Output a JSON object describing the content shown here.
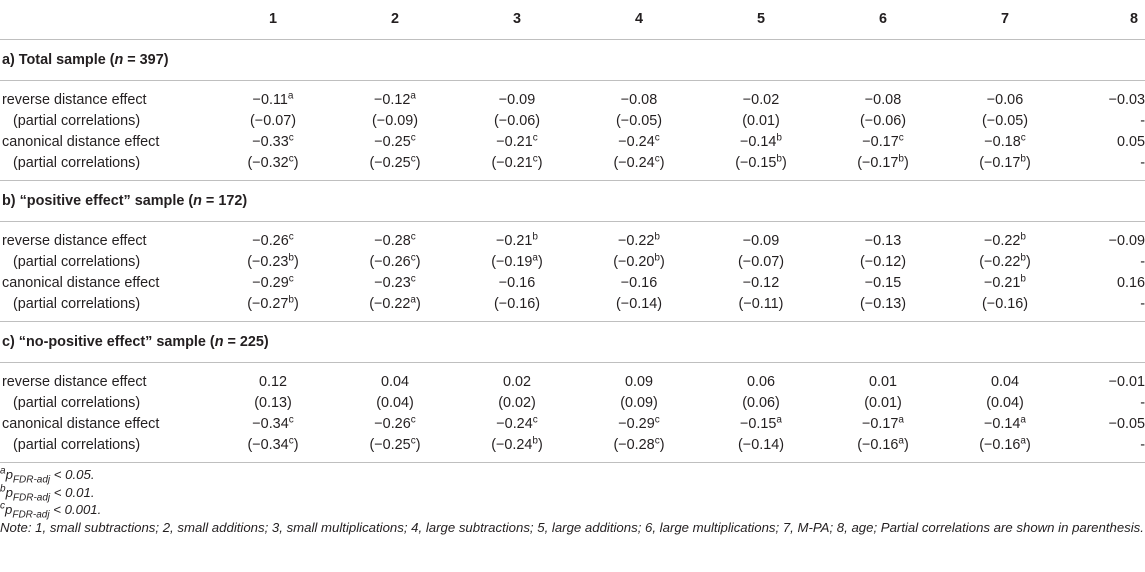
{
  "columns": [
    "",
    "1",
    "2",
    "3",
    "4",
    "5",
    "6",
    "7",
    "8"
  ],
  "sections": [
    {
      "title_prefix": "a) Total sample (",
      "title_n": "n",
      "title_suffix": " = 397)",
      "rows": [
        {
          "label": "reverse distance effect",
          "indent": false,
          "cells": [
            [
              "−0.11",
              "a"
            ],
            [
              "−0.12",
              "a"
            ],
            [
              "−0.09",
              ""
            ],
            [
              "−0.08",
              ""
            ],
            [
              "−0.02",
              ""
            ],
            [
              "−0.08",
              ""
            ],
            [
              "−0.06",
              ""
            ],
            [
              "−0.03",
              ""
            ]
          ]
        },
        {
          "label": "(partial correlations)",
          "indent": true,
          "cells": [
            [
              "(−0.07)",
              ""
            ],
            [
              "(−0.09)",
              ""
            ],
            [
              "(−0.06)",
              ""
            ],
            [
              "(−0.05)",
              ""
            ],
            [
              "(0.01)",
              ""
            ],
            [
              "(−0.06)",
              ""
            ],
            [
              "(−0.05)",
              ""
            ],
            [
              "-",
              ""
            ]
          ]
        },
        {
          "label": "canonical distance effect",
          "indent": false,
          "cells": [
            [
              "−0.33",
              "c"
            ],
            [
              "−0.25",
              "c"
            ],
            [
              "−0.21",
              "c"
            ],
            [
              "−0.24",
              "c"
            ],
            [
              "−0.14",
              "b"
            ],
            [
              "−0.17",
              "c"
            ],
            [
              "−0.18",
              "c"
            ],
            [
              "0.05",
              ""
            ]
          ]
        },
        {
          "label": "(partial correlations)",
          "indent": true,
          "cells": [
            [
              "(−0.32",
              "c",
              ")"
            ],
            [
              "(−0.25",
              "c",
              ")"
            ],
            [
              "(−0.21",
              "c",
              ")"
            ],
            [
              "(−0.24",
              "c",
              ")"
            ],
            [
              "(−0.15",
              "b",
              ")"
            ],
            [
              "(−0.17",
              "b",
              ")"
            ],
            [
              "(−0.17",
              "b",
              ")"
            ],
            [
              "-",
              ""
            ]
          ]
        }
      ]
    },
    {
      "title_prefix": "b) “positive effect” sample (",
      "title_n": "n",
      "title_suffix": " = 172)",
      "rows": [
        {
          "label": "reverse distance effect",
          "indent": false,
          "cells": [
            [
              "−0.26",
              "c"
            ],
            [
              "−0.28",
              "c"
            ],
            [
              "−0.21",
              "b"
            ],
            [
              "−0.22",
              "b"
            ],
            [
              "−0.09",
              ""
            ],
            [
              "−0.13",
              ""
            ],
            [
              "−0.22",
              "b"
            ],
            [
              "−0.09",
              ""
            ]
          ]
        },
        {
          "label": "(partial correlations)",
          "indent": true,
          "cells": [
            [
              "(−0.23",
              "b",
              ")"
            ],
            [
              "(−0.26",
              "c",
              ")"
            ],
            [
              "(−0.19",
              "a",
              ")"
            ],
            [
              "(−0.20",
              "b",
              ")"
            ],
            [
              "(−0.07)",
              ""
            ],
            [
              "(−0.12)",
              ""
            ],
            [
              "(−0.22",
              "b",
              ")"
            ],
            [
              "-",
              ""
            ]
          ]
        },
        {
          "label": "canonical distance effect",
          "indent": false,
          "cells": [
            [
              "−0.29",
              "c"
            ],
            [
              "−0.23",
              "c"
            ],
            [
              "−0.16",
              ""
            ],
            [
              "−0.16",
              ""
            ],
            [
              "−0.12",
              ""
            ],
            [
              "−0.15",
              ""
            ],
            [
              "−0.21",
              "b"
            ],
            [
              "0.16",
              ""
            ]
          ]
        },
        {
          "label": "(partial correlations)",
          "indent": true,
          "cells": [
            [
              "(−0.27",
              "b",
              ")"
            ],
            [
              "(−0.22",
              "a",
              ")"
            ],
            [
              "(−0.16)",
              ""
            ],
            [
              "(−0.14)",
              ""
            ],
            [
              "(−0.11)",
              ""
            ],
            [
              "(−0.13)",
              ""
            ],
            [
              "(−0.16)",
              ""
            ],
            [
              "-",
              ""
            ]
          ]
        }
      ]
    },
    {
      "title_prefix": "c) “no-positive effect” sample (",
      "title_n": "n",
      "title_suffix": " = 225)",
      "rows": [
        {
          "label": "reverse distance effect",
          "indent": false,
          "cells": [
            [
              "0.12",
              ""
            ],
            [
              "0.04",
              ""
            ],
            [
              "0.02",
              ""
            ],
            [
              "0.09",
              ""
            ],
            [
              "0.06",
              ""
            ],
            [
              "0.01",
              ""
            ],
            [
              "0.04",
              ""
            ],
            [
              "−0.01",
              ""
            ]
          ]
        },
        {
          "label": "(partial correlations)",
          "indent": true,
          "cells": [
            [
              "(0.13)",
              ""
            ],
            [
              "(0.04)",
              ""
            ],
            [
              "(0.02)",
              ""
            ],
            [
              "(0.09)",
              ""
            ],
            [
              "(0.06)",
              ""
            ],
            [
              "(0.01)",
              ""
            ],
            [
              "(0.04)",
              ""
            ],
            [
              "-",
              ""
            ]
          ]
        },
        {
          "label": "canonical distance effect",
          "indent": false,
          "cells": [
            [
              "−0.34",
              "c"
            ],
            [
              "−0.26",
              "c"
            ],
            [
              "−0.24",
              "c"
            ],
            [
              "−0.29",
              "c"
            ],
            [
              "−0.15",
              "a"
            ],
            [
              "−0.17",
              "a"
            ],
            [
              "−0.14",
              "a"
            ],
            [
              "−0.05",
              ""
            ]
          ]
        },
        {
          "label": "(partial correlations)",
          "indent": true,
          "cells": [
            [
              "(−0.34",
              "c",
              ")"
            ],
            [
              "(−0.25",
              "c",
              ")"
            ],
            [
              "(−0.24",
              "b",
              ")"
            ],
            [
              "(−0.28",
              "c",
              ")"
            ],
            [
              "(−0.14)",
              ""
            ],
            [
              "(−0.16",
              "a",
              ")"
            ],
            [
              "(−0.16",
              "a",
              ")"
            ],
            [
              "-",
              ""
            ]
          ]
        }
      ]
    }
  ],
  "footnotes": [
    {
      "sup": "a",
      "p": "p",
      "sub": "FDR-adj",
      "text": " < 0.05."
    },
    {
      "sup": "b",
      "p": "p",
      "sub": "FDR-adj",
      "text": " < 0.01."
    },
    {
      "sup": "c",
      "p": "p",
      "sub": "FDR-adj",
      "text": " < 0.001."
    }
  ],
  "note": "Note: 1, small subtractions; 2, small additions; 3, small multiplications; 4, large subtractions; 5, large additions; 6, large multiplications; 7, M-PA; 8, age; Partial correlations are shown in parenthesis."
}
